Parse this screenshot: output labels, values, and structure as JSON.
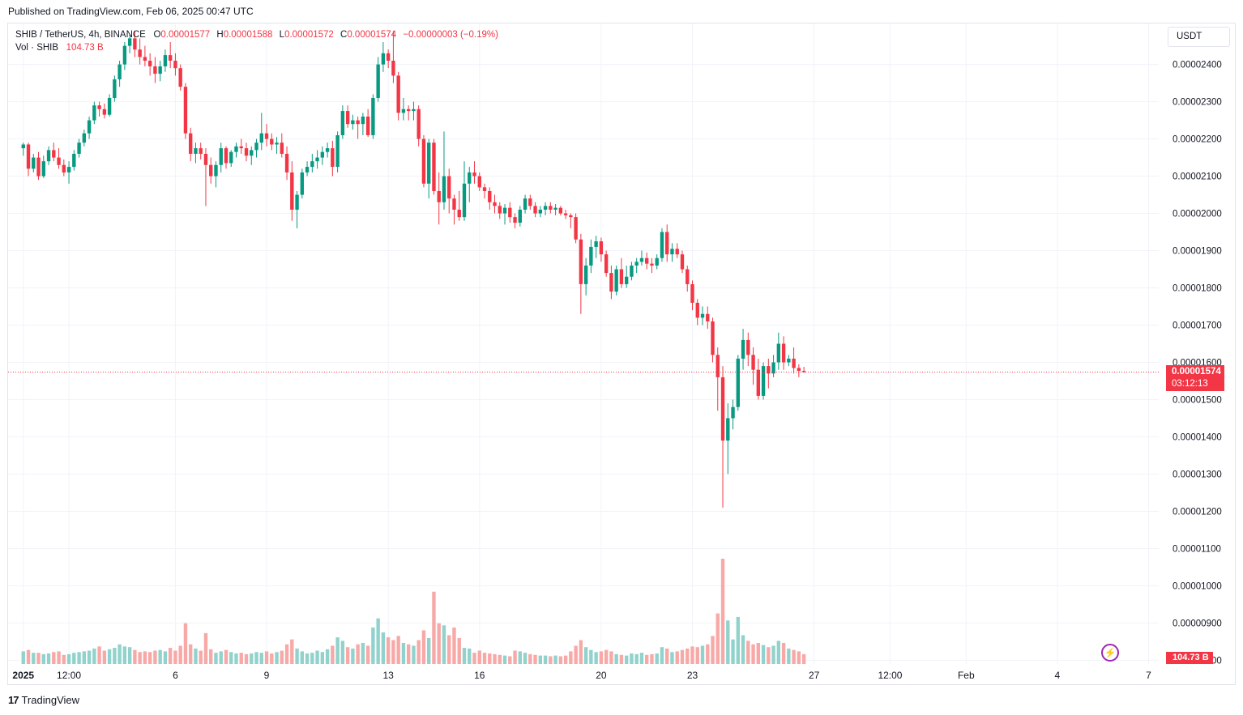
{
  "header": {
    "published": "Published on TradingView.com, Feb 06, 2025 00:47 UTC"
  },
  "legend": {
    "symbol": "SHIB / TetherUS, 4h, BINANCE",
    "o_label": "O",
    "o_value": "0.00001577",
    "h_label": "H",
    "h_value": "0.00001588",
    "l_label": "L",
    "l_value": "0.00001572",
    "c_label": "C",
    "c_value": "0.00001574",
    "change": "−0.00000003 (−0.19%)",
    "vol_label": "Vol · SHIB",
    "vol_value": "104.73 B"
  },
  "toolbar": {
    "unit_label": "USDT"
  },
  "last_price": {
    "value": "0.00001574",
    "countdown": "03:12:13"
  },
  "volume_tag": {
    "value": "104.73 B"
  },
  "footer": {
    "brand": "TradingView",
    "logo_icon": "tradingview-logo-icon"
  },
  "colors": {
    "up": "#089981",
    "down": "#f23645",
    "up_volume": "#92d2cc",
    "down_volume": "#f7a9a7",
    "grid": "#f0f3fa"
  },
  "chart_data": {
    "type": "candlestick",
    "interval": "4h",
    "y_axis": {
      "ticks": [
        "0.00000800",
        "0.00000900",
        "0.00001000",
        "0.00001100",
        "0.00001200",
        "0.00001300",
        "0.00001400",
        "0.00001500",
        "0.00001600",
        "0.00001700",
        "0.00001800",
        "0.00001900",
        "0.00002000",
        "0.00002100",
        "0.00002200",
        "0.00002300",
        "0.00002400"
      ],
      "min": 7.9e-06,
      "max": 2.51e-05,
      "scale_factor": 1e-08,
      "unit": "USDT"
    },
    "x_axis": {
      "start": "2024-12-31T12:00",
      "end": "2025-02-07T08:00",
      "ticks": [
        {
          "label": "2025",
          "t": "2025-01-01T00:00"
        },
        {
          "label": "12:00",
          "t": "2025-01-02T12:00"
        },
        {
          "label": "6",
          "t": "2025-01-06T00:00"
        },
        {
          "label": "9",
          "t": "2025-01-09T00:00"
        },
        {
          "label": "13",
          "t": "2025-01-13T00:00"
        },
        {
          "label": "16",
          "t": "2025-01-16T00:00"
        },
        {
          "label": "20",
          "t": "2025-01-20T00:00"
        },
        {
          "label": "23",
          "t": "2025-01-23T00:00"
        },
        {
          "label": "27",
          "t": "2025-01-27T00:00"
        },
        {
          "label": "12:00",
          "t": "2025-01-29T12:00"
        },
        {
          "label": "Feb",
          "t": "2025-02-01T00:00"
        },
        {
          "label": "4",
          "t": "2025-02-04T00:00"
        },
        {
          "label": "7",
          "t": "2025-02-07T00:00"
        }
      ]
    },
    "last_close": 1574,
    "candles": [
      [
        2175,
        2190,
        2155,
        2185,
        18
      ],
      [
        2185,
        2190,
        2100,
        2120,
        20
      ],
      [
        2120,
        2160,
        2110,
        2150,
        16
      ],
      [
        2150,
        2165,
        2090,
        2100,
        16
      ],
      [
        2100,
        2155,
        2095,
        2140,
        14
      ],
      [
        2140,
        2180,
        2130,
        2170,
        15
      ],
      [
        2170,
        2190,
        2140,
        2150,
        17
      ],
      [
        2150,
        2175,
        2120,
        2130,
        18
      ],
      [
        2130,
        2145,
        2100,
        2110,
        13
      ],
      [
        2110,
        2140,
        2080,
        2125,
        14
      ],
      [
        2125,
        2170,
        2115,
        2160,
        16
      ],
      [
        2160,
        2200,
        2150,
        2190,
        17
      ],
      [
        2190,
        2225,
        2180,
        2215,
        18
      ],
      [
        2215,
        2260,
        2200,
        2250,
        19
      ],
      [
        2250,
        2300,
        2240,
        2290,
        22
      ],
      [
        2290,
        2300,
        2260,
        2280,
        25
      ],
      [
        2280,
        2295,
        2255,
        2265,
        19
      ],
      [
        2265,
        2320,
        2260,
        2310,
        21
      ],
      [
        2310,
        2370,
        2300,
        2360,
        23
      ],
      [
        2360,
        2410,
        2340,
        2400,
        28
      ],
      [
        2400,
        2460,
        2385,
        2450,
        25
      ],
      [
        2450,
        2480,
        2430,
        2470,
        24
      ],
      [
        2470,
        2490,
        2420,
        2440,
        20
      ],
      [
        2440,
        2470,
        2400,
        2420,
        17
      ],
      [
        2420,
        2450,
        2395,
        2410,
        18
      ],
      [
        2410,
        2430,
        2370,
        2395,
        17
      ],
      [
        2395,
        2420,
        2350,
        2375,
        19
      ],
      [
        2375,
        2410,
        2355,
        2395,
        20
      ],
      [
        2395,
        2440,
        2380,
        2425,
        18
      ],
      [
        2425,
        2460,
        2390,
        2410,
        23
      ],
      [
        2410,
        2430,
        2370,
        2390,
        19
      ],
      [
        2390,
        2400,
        2330,
        2340,
        26
      ],
      [
        2340,
        2350,
        2200,
        2215,
        58
      ],
      [
        2215,
        2230,
        2140,
        2160,
        28
      ],
      [
        2160,
        2190,
        2135,
        2175,
        22
      ],
      [
        2175,
        2190,
        2145,
        2160,
        19
      ],
      [
        2160,
        2175,
        2020,
        2130,
        44
      ],
      [
        2130,
        2150,
        2080,
        2100,
        21
      ],
      [
        2100,
        2140,
        2070,
        2130,
        16
      ],
      [
        2130,
        2190,
        2110,
        2175,
        18
      ],
      [
        2175,
        2180,
        2120,
        2135,
        20
      ],
      [
        2135,
        2170,
        2125,
        2165,
        17
      ],
      [
        2165,
        2190,
        2150,
        2180,
        15
      ],
      [
        2180,
        2200,
        2160,
        2175,
        16
      ],
      [
        2175,
        2190,
        2140,
        2155,
        14
      ],
      [
        2155,
        2180,
        2130,
        2170,
        15
      ],
      [
        2170,
        2200,
        2150,
        2190,
        17
      ],
      [
        2190,
        2270,
        2170,
        2215,
        16
      ],
      [
        2215,
        2240,
        2180,
        2200,
        18
      ],
      [
        2200,
        2215,
        2170,
        2185,
        15
      ],
      [
        2185,
        2205,
        2160,
        2190,
        17
      ],
      [
        2190,
        2215,
        2150,
        2160,
        19
      ],
      [
        2160,
        2180,
        2090,
        2110,
        28
      ],
      [
        2110,
        2140,
        1980,
        2010,
        35
      ],
      [
        2010,
        2060,
        1960,
        2050,
        22
      ],
      [
        2050,
        2120,
        2040,
        2110,
        18
      ],
      [
        2110,
        2140,
        2100,
        2125,
        15
      ],
      [
        2125,
        2160,
        2110,
        2140,
        16
      ],
      [
        2140,
        2170,
        2120,
        2150,
        19
      ],
      [
        2150,
        2180,
        2130,
        2165,
        17
      ],
      [
        2165,
        2190,
        2150,
        2175,
        21
      ],
      [
        2175,
        2195,
        2100,
        2125,
        26
      ],
      [
        2125,
        2220,
        2110,
        2210,
        38
      ],
      [
        2210,
        2290,
        2200,
        2275,
        33
      ],
      [
        2275,
        2290,
        2230,
        2240,
        24
      ],
      [
        2240,
        2265,
        2225,
        2250,
        22
      ],
      [
        2250,
        2260,
        2200,
        2240,
        28
      ],
      [
        2240,
        2270,
        2210,
        2260,
        30
      ],
      [
        2260,
        2280,
        2205,
        2210,
        26
      ],
      [
        2210,
        2320,
        2200,
        2310,
        52
      ],
      [
        2310,
        2420,
        2300,
        2400,
        65
      ],
      [
        2400,
        2460,
        2380,
        2430,
        45
      ],
      [
        2430,
        2440,
        2390,
        2410,
        38
      ],
      [
        2410,
        2490,
        2350,
        2370,
        34
      ],
      [
        2370,
        2380,
        2250,
        2270,
        40
      ],
      [
        2270,
        2310,
        2250,
        2280,
        30
      ],
      [
        2280,
        2290,
        2250,
        2275,
        28
      ],
      [
        2275,
        2300,
        2250,
        2280,
        26
      ],
      [
        2280,
        2290,
        2180,
        2200,
        34
      ],
      [
        2200,
        2210,
        2070,
        2080,
        48
      ],
      [
        2080,
        2200,
        2040,
        2190,
        37
      ],
      [
        2190,
        2200,
        2050,
        2060,
        103
      ],
      [
        2060,
        2110,
        1970,
        2030,
        58
      ],
      [
        2030,
        2220,
        2010,
        2100,
        55
      ],
      [
        2100,
        2120,
        2000,
        2040,
        41
      ],
      [
        2040,
        2050,
        1970,
        2010,
        52
      ],
      [
        2010,
        2060,
        1980,
        1990,
        37
      ],
      [
        1990,
        2140,
        1980,
        2080,
        23
      ],
      [
        2080,
        2125,
        2030,
        2110,
        22
      ],
      [
        2110,
        2140,
        2080,
        2100,
        16
      ],
      [
        2100,
        2110,
        2060,
        2070,
        19
      ],
      [
        2070,
        2080,
        2040,
        2060,
        16
      ],
      [
        2060,
        2070,
        2010,
        2030,
        15
      ],
      [
        2030,
        2050,
        2000,
        2020,
        14
      ],
      [
        2020,
        2030,
        1985,
        2000,
        13
      ],
      [
        2000,
        2025,
        1970,
        2015,
        12
      ],
      [
        2015,
        2030,
        1975,
        1990,
        11
      ],
      [
        1990,
        2000,
        1960,
        1975,
        19
      ],
      [
        1975,
        2020,
        1965,
        2010,
        18
      ],
      [
        2010,
        2050,
        2000,
        2040,
        16
      ],
      [
        2040,
        2050,
        2010,
        2020,
        14
      ],
      [
        2020,
        2030,
        1990,
        2000,
        13
      ],
      [
        2000,
        2020,
        1990,
        2010,
        12
      ],
      [
        2010,
        2030,
        1995,
        2020,
        12
      ],
      [
        2020,
        2030,
        2000,
        2010,
        11
      ],
      [
        2010,
        2025,
        1995,
        2015,
        12
      ],
      [
        2015,
        2020,
        1995,
        2000,
        11
      ],
      [
        2000,
        2010,
        1985,
        1995,
        12
      ],
      [
        1995,
        2000,
        1960,
        1990,
        18
      ],
      [
        1990,
        2000,
        1920,
        1930,
        26
      ],
      [
        1930,
        1945,
        1730,
        1810,
        34
      ],
      [
        1810,
        1880,
        1780,
        1860,
        24
      ],
      [
        1860,
        1930,
        1840,
        1910,
        20
      ],
      [
        1910,
        1940,
        1880,
        1925,
        17
      ],
      [
        1925,
        1935,
        1870,
        1890,
        18
      ],
      [
        1890,
        1900,
        1830,
        1840,
        20
      ],
      [
        1840,
        1860,
        1770,
        1790,
        18
      ],
      [
        1790,
        1860,
        1780,
        1850,
        14
      ],
      [
        1850,
        1880,
        1800,
        1810,
        13
      ],
      [
        1810,
        1860,
        1800,
        1830,
        12
      ],
      [
        1830,
        1870,
        1820,
        1860,
        15
      ],
      [
        1860,
        1880,
        1840,
        1870,
        14
      ],
      [
        1870,
        1900,
        1860,
        1880,
        16
      ],
      [
        1880,
        1895,
        1850,
        1865,
        13
      ],
      [
        1865,
        1880,
        1840,
        1860,
        14
      ],
      [
        1860,
        1890,
        1850,
        1880,
        15
      ],
      [
        1880,
        1960,
        1870,
        1950,
        24
      ],
      [
        1950,
        1970,
        1870,
        1890,
        22
      ],
      [
        1890,
        1920,
        1870,
        1905,
        17
      ],
      [
        1905,
        1920,
        1880,
        1890,
        18
      ],
      [
        1890,
        1900,
        1840,
        1850,
        20
      ],
      [
        1850,
        1860,
        1790,
        1810,
        22
      ],
      [
        1810,
        1820,
        1740,
        1760,
        25
      ],
      [
        1760,
        1770,
        1700,
        1720,
        24
      ],
      [
        1720,
        1750,
        1700,
        1730,
        26
      ],
      [
        1730,
        1750,
        1690,
        1710,
        28
      ],
      [
        1710,
        1720,
        1600,
        1620,
        40
      ],
      [
        1620,
        1640,
        1470,
        1560,
        72
      ],
      [
        1560,
        1590,
        1210,
        1390,
        150
      ],
      [
        1390,
        1490,
        1300,
        1450,
        62
      ],
      [
        1450,
        1500,
        1420,
        1480,
        35
      ],
      [
        1480,
        1620,
        1470,
        1610,
        67
      ],
      [
        1610,
        1690,
        1580,
        1660,
        41
      ],
      [
        1660,
        1680,
        1590,
        1620,
        33
      ],
      [
        1620,
        1640,
        1540,
        1580,
        28
      ],
      [
        1580,
        1610,
        1500,
        1510,
        30
      ],
      [
        1510,
        1600,
        1500,
        1590,
        27
      ],
      [
        1590,
        1610,
        1530,
        1570,
        24
      ],
      [
        1570,
        1620,
        1560,
        1600,
        26
      ],
      [
        1600,
        1680,
        1580,
        1650,
        33
      ],
      [
        1650,
        1670,
        1580,
        1600,
        30
      ],
      [
        1600,
        1620,
        1590,
        1610,
        22
      ],
      [
        1610,
        1640,
        1570,
        1585,
        20
      ],
      [
        1585,
        1595,
        1560,
        1577,
        18
      ],
      [
        1577,
        1588,
        1572,
        1574,
        14
      ]
    ]
  }
}
